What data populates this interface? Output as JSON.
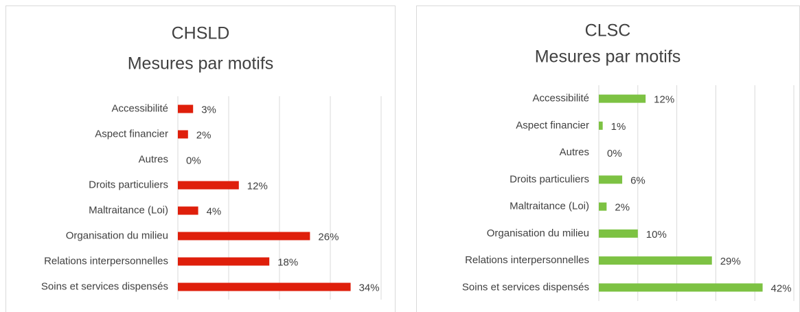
{
  "chart_data": [
    {
      "type": "bar",
      "title": "CHSLD",
      "subtitle": "Mesures par motifs",
      "categories": [
        "Accessibilité",
        "Aspect financier",
        "Autres",
        "Droits particuliers",
        "Maltraitance (Loi)",
        "Organisation du milieu",
        "Relations interpersonnelles",
        "Soins et services dispensés"
      ],
      "values": [
        3,
        2,
        0,
        12,
        4,
        26,
        18,
        34
      ],
      "value_labels": [
        "3%",
        "2%",
        "0%",
        "12%",
        "4%",
        "26%",
        "18%",
        "34%"
      ],
      "color": "#df1f0b",
      "xlim": [
        0,
        40
      ],
      "xticks": [
        0,
        10,
        20,
        30,
        40
      ],
      "grid": true
    },
    {
      "type": "bar",
      "title": "CLSC",
      "subtitle": "Mesures par motifs",
      "categories": [
        "Accessibilité",
        "Aspect financier",
        "Autres",
        "Droits particuliers",
        "Maltraitance (Loi)",
        "Organisation du milieu",
        "Relations interpersonnelles",
        "Soins et services dispensés"
      ],
      "values": [
        12,
        1,
        0,
        6,
        2,
        10,
        29,
        42
      ],
      "value_labels": [
        "12%",
        "1%",
        "0%",
        "6%",
        "2%",
        "10%",
        "29%",
        "42%"
      ],
      "color": "#7dc243",
      "xlim": [
        0,
        50
      ],
      "xticks": [
        0,
        10,
        20,
        30,
        40,
        50
      ],
      "grid": true
    }
  ]
}
